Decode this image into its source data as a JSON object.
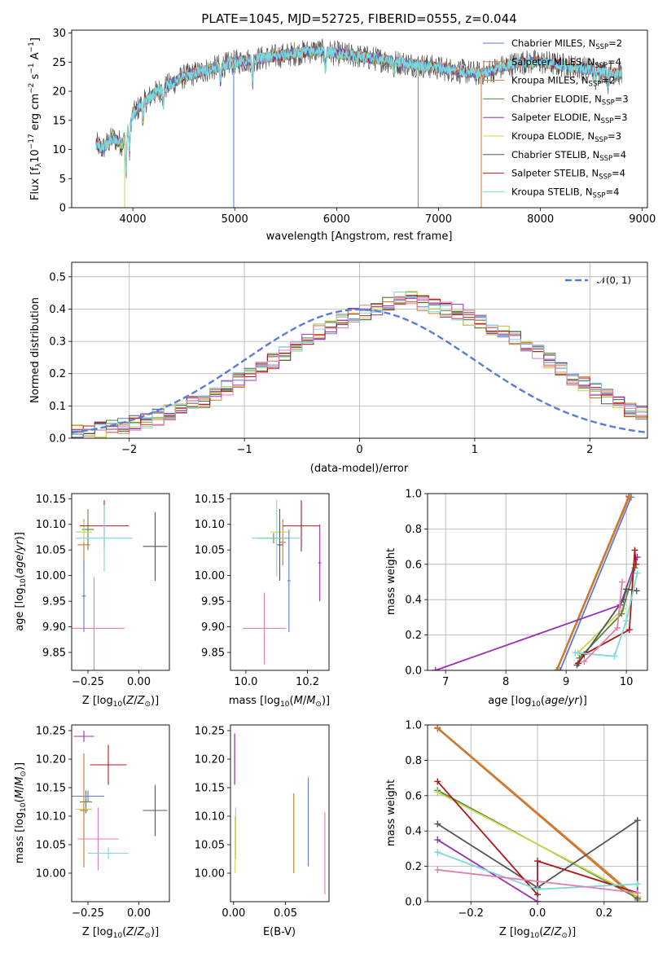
{
  "colors": {
    "ch_miles": "#5b7bd5",
    "sa_miles": "#e07b39",
    "kr_miles": "#c8782a",
    "ch_elodie": "#4f8a3c",
    "sa_elodie": "#9b30b8",
    "kr_elodie": "#c8d84a",
    "ch_stelib": "#555555",
    "sa_stelib": "#b01818",
    "kr_stelib": "#7dd8dc",
    "pink": "#e07fb0"
  },
  "chart_data": [
    {
      "id": "spectrum",
      "type": "line",
      "title": "PLATE=1045, MJD=52725, FIBERID=0555, z=0.044",
      "xlabel": "wavelength [Angstrom, rest frame]",
      "ylabel": "Flux [fλ10⁻¹⁷ erg cm⁻² s⁻¹ A⁻¹]",
      "xlim": [
        3400,
        9050
      ],
      "ylim": [
        0,
        30.5
      ],
      "xticks": [
        4000,
        5000,
        6000,
        7000,
        8000,
        9000
      ],
      "yticks": [
        0,
        5,
        10,
        15,
        20,
        25,
        30
      ],
      "continuum": {
        "x": [
          3640,
          3700,
          3800,
          3900,
          4000,
          4100,
          4200,
          4300,
          4400,
          4500,
          4600,
          4700,
          4800,
          4900,
          5000,
          5200,
          5400,
          5600,
          5800,
          6000,
          6200,
          6400,
          6600,
          6800,
          7000,
          7200,
          7400,
          7600,
          7800,
          8000,
          8200,
          8400,
          8600,
          8800
        ],
        "y": [
          11,
          10,
          12,
          11,
          16,
          18,
          19.5,
          20.5,
          21.5,
          22.5,
          23,
          23.5,
          24,
          24.5,
          25,
          25.5,
          26,
          26.5,
          27,
          26.5,
          26,
          25.5,
          25,
          24.5,
          24,
          23.5,
          23,
          24,
          25,
          25,
          24.5,
          24,
          23.5,
          23
        ]
      },
      "legend": [
        {
          "label": "Chabrier MILES, N",
          "sub": "SSP",
          "suffix": "=2",
          "color_key": "ch_miles"
        },
        {
          "label": "Salpeter MILES, N",
          "sub": "SSP",
          "suffix": "=4",
          "color_key": "sa_miles"
        },
        {
          "label": "Kroupa MILES, N",
          "sub": "SSP",
          "suffix": "=2",
          "color_key": "kr_miles"
        },
        {
          "label": "Chabrier ELODIE, N",
          "sub": "SSP",
          "suffix": "=3",
          "color_key": "ch_elodie"
        },
        {
          "label": "Salpeter ELODIE, N",
          "sub": "SSP",
          "suffix": "=3",
          "color_key": "sa_elodie"
        },
        {
          "label": "Kroupa ELODIE, N",
          "sub": "SSP",
          "suffix": "=3",
          "color_key": "kr_elodie"
        },
        {
          "label": "Chabrier STELIB, N",
          "sub": "SSP",
          "suffix": "=4",
          "color_key": "ch_stelib"
        },
        {
          "label": "Salpeter STELIB, N",
          "sub": "SSP",
          "suffix": "=4",
          "color_key": "sa_stelib"
        },
        {
          "label": "Kroupa STELIB, N",
          "sub": "SSP",
          "suffix": "=4",
          "color_key": "kr_stelib"
        }
      ]
    },
    {
      "id": "residuals",
      "type": "line",
      "xlabel": "(data-model)/error",
      "ylabel": "Normed distribution",
      "xlim": [
        -2.5,
        2.5
      ],
      "ylim": [
        0,
        0.545
      ],
      "xticks": [
        -2,
        -1,
        0,
        1,
        2
      ],
      "yticks": [
        0.0,
        0.1,
        0.2,
        0.3,
        0.4,
        0.5
      ],
      "legend": [
        {
          "label": "𝒩(0, 1)",
          "color_key": "ch_miles"
        }
      ],
      "bin_width": 0.1,
      "series_center_y": [
        0.02,
        0.022,
        0.028,
        0.032,
        0.038,
        0.045,
        0.055,
        0.065,
        0.08,
        0.09,
        0.105,
        0.12,
        0.14,
        0.155,
        0.18,
        0.2,
        0.215,
        0.24,
        0.26,
        0.29,
        0.31,
        0.33,
        0.345,
        0.36,
        0.38,
        0.39,
        0.4,
        0.42,
        0.43,
        0.43,
        0.42,
        0.41,
        0.4,
        0.39,
        0.375,
        0.365,
        0.345,
        0.33,
        0.31,
        0.28,
        0.265,
        0.24,
        0.21,
        0.19,
        0.17,
        0.15,
        0.13,
        0.105,
        0.09,
        0.075
      ]
    },
    {
      "id": "age_vs_Z",
      "type": "scatter",
      "xlabel": "Z [log₁₀(Z/Z⊙)]",
      "ylabel": "age  [log₁₀(age/yr)]",
      "xlim": [
        -0.33,
        0.15
      ],
      "ylim": [
        9.815,
        10.16
      ],
      "xticks": [
        -0.25,
        0.0
      ],
      "yticks": [
        9.85,
        9.9,
        9.95,
        10.0,
        10.05,
        10.1,
        10.15
      ],
      "points": [
        {
          "x": -0.27,
          "y": 10.06,
          "xerr": 0.03,
          "yerr": 0.05,
          "color_key": "kr_miles"
        },
        {
          "x": -0.25,
          "y": 10.09,
          "xerr": 0.03,
          "yerr": 0.04,
          "color_key": "ch_elodie"
        },
        {
          "x": -0.27,
          "y": 10.085,
          "xerr": 0.04,
          "yerr": 0.02,
          "color_key": "kr_elodie"
        },
        {
          "x": -0.17,
          "y": 10.097,
          "xerr": 0.12,
          "yerr": 0.05,
          "color_key": "sa_stelib"
        },
        {
          "x": 0.08,
          "y": 10.057,
          "xerr": 0.06,
          "yerr": 0.067,
          "color_key": "ch_stelib"
        },
        {
          "x": -0.17,
          "y": 10.073,
          "xerr": 0.14,
          "yerr": 0.065,
          "color_key": "kr_stelib"
        },
        {
          "x": -0.22,
          "y": 9.897,
          "xerr": 0.15,
          "yerr": 0.1,
          "color_key": "pink"
        },
        {
          "x": -0.27,
          "y": 9.96,
          "xerr": 0.01,
          "yerr": 0.07,
          "color_key": "ch_miles"
        }
      ]
    },
    {
      "id": "age_vs_mass",
      "type": "scatter",
      "xlabel": "mass [log₁₀(M/M⊙)]",
      "ylabel": "",
      "xlim": [
        9.95,
        10.27
      ],
      "ylim": [
        9.815,
        10.16
      ],
      "xticks": [
        10.0,
        10.2
      ],
      "yticks": [
        9.85,
        9.9,
        9.95,
        10.0,
        10.05,
        10.1,
        10.15
      ],
      "points": [
        {
          "x": 10.12,
          "y": 10.065,
          "xerr": 0.01,
          "yerr": 0.045,
          "color_key": "kr_miles"
        },
        {
          "x": 10.11,
          "y": 10.085,
          "xerr": 0.03,
          "yerr": 0.02,
          "color_key": "kr_elodie"
        },
        {
          "x": 10.09,
          "y": 10.073,
          "xerr": 0.05,
          "yerr": 0.01,
          "color_key": "ch_elodie"
        },
        {
          "x": 10.18,
          "y": 10.097,
          "xerr": 0.06,
          "yerr": 0.05,
          "color_key": "sa_stelib"
        },
        {
          "x": 10.11,
          "y": 10.06,
          "xerr": 0.01,
          "yerr": 0.07,
          "color_key": "ch_stelib"
        },
        {
          "x": 10.1,
          "y": 10.073,
          "xerr": 0.08,
          "yerr": 0.075,
          "color_key": "kr_stelib"
        },
        {
          "x": 10.06,
          "y": 9.897,
          "xerr": 0.07,
          "yerr": 0.07,
          "color_key": "pink"
        },
        {
          "x": 10.24,
          "y": 10.025,
          "xerr": 0.005,
          "yerr": 0.075,
          "color_key": "sa_elodie"
        },
        {
          "x": 10.14,
          "y": 9.99,
          "xerr": 0.005,
          "yerr": 0.1,
          "color_key": "ch_miles"
        }
      ]
    },
    {
      "id": "mass_weight_vs_age",
      "type": "line",
      "xlabel": "age  [log₁₀(age/yr)]",
      "ylabel": "mass weight",
      "xlim": [
        6.7,
        10.35
      ],
      "ylim": [
        0,
        1
      ],
      "xticks": [
        7,
        8,
        9,
        10
      ],
      "yticks": [
        0.0,
        0.2,
        0.4,
        0.6,
        0.8,
        1.0
      ],
      "series": [
        {
          "color_key": "ch_miles",
          "x": [
            8.9,
            10.08
          ],
          "y": [
            0.0,
            0.98
          ]
        },
        {
          "color_key": "sa_miles",
          "x": [
            8.85,
            10.05
          ],
          "y": [
            0.0,
            0.98
          ]
        },
        {
          "color_key": "kr_miles",
          "x": [
            8.84,
            10.04
          ],
          "y": [
            0.0,
            0.985
          ]
        },
        {
          "color_key": "sa_elodie",
          "x": [
            6.83,
            9.9,
            10.18
          ],
          "y": [
            0.0,
            0.37,
            0.64
          ]
        },
        {
          "color_key": "kr_elodie",
          "x": [
            9.2,
            9.95,
            10.15
          ],
          "y": [
            0.1,
            0.35,
            0.6
          ]
        },
        {
          "color_key": "ch_elodie",
          "x": [
            9.22,
            9.92,
            10.14
          ],
          "y": [
            0.07,
            0.32,
            0.58
          ]
        },
        {
          "color_key": "ch_stelib",
          "x": [
            9.18,
            9.95,
            10.0,
            10.17
          ],
          "y": [
            0.03,
            0.4,
            0.46,
            0.45
          ]
        },
        {
          "color_key": "sa_stelib",
          "x": [
            9.2,
            9.3,
            10.05,
            10.14,
            10.16
          ],
          "y": [
            0.04,
            0.09,
            0.23,
            0.68,
            0.6
          ]
        },
        {
          "color_key": "kr_stelib",
          "x": [
            9.15,
            9.8,
            10.0,
            10.18
          ],
          "y": [
            0.1,
            0.08,
            0.28,
            0.55
          ]
        },
        {
          "color_key": "pink",
          "x": [
            9.3,
            9.85,
            9.93
          ],
          "y": [
            0.05,
            0.24,
            0.5
          ]
        }
      ]
    },
    {
      "id": "mass_vs_Z",
      "type": "scatter",
      "xlabel": "Z [log₁₀(Z/Z⊙)]",
      "ylabel": "mass [log₁₀(M/M⊙)]",
      "xlim": [
        -0.33,
        0.15
      ],
      "ylim": [
        9.95,
        10.26
      ],
      "xticks": [
        -0.25,
        0.0
      ],
      "yticks": [
        10.0,
        10.05,
        10.1,
        10.15,
        10.2,
        10.25
      ],
      "points": [
        {
          "x": -0.27,
          "y": 10.24,
          "xerr": 0.05,
          "yerr": 0.01,
          "color_key": "sa_elodie"
        },
        {
          "x": -0.15,
          "y": 10.19,
          "xerr": 0.09,
          "yerr": 0.035,
          "color_key": "sa_stelib"
        },
        {
          "x": -0.26,
          "y": 10.125,
          "xerr": 0.03,
          "yerr": 0.02,
          "color_key": "ch_elodie"
        },
        {
          "x": -0.25,
          "y": 10.135,
          "xerr": 0.08,
          "yerr": 0.01,
          "color_key": "ch_miles"
        },
        {
          "x": -0.27,
          "y": 10.112,
          "xerr": 0.04,
          "yerr": 0.01,
          "color_key": "kr_elodie"
        },
        {
          "x": -0.27,
          "y": 10.11,
          "xerr": 0.02,
          "yerr": 0.1,
          "color_key": "kr_miles"
        },
        {
          "x": 0.08,
          "y": 10.11,
          "xerr": 0.06,
          "yerr": 0.045,
          "color_key": "ch_stelib"
        },
        {
          "x": -0.2,
          "y": 10.06,
          "xerr": 0.1,
          "yerr": 0.055,
          "color_key": "pink"
        },
        {
          "x": -0.15,
          "y": 10.035,
          "xerr": 0.1,
          "yerr": 0.01,
          "color_key": "kr_stelib"
        }
      ]
    },
    {
      "id": "mass_vs_ebv",
      "type": "scatter",
      "xlabel": "E(B-V)",
      "ylabel": "",
      "xlim": [
        -0.003,
        0.092
      ],
      "ylim": [
        9.95,
        10.26
      ],
      "xticks": [
        0.0,
        0.05
      ],
      "yticks": [
        10.0,
        10.05,
        10.1,
        10.15,
        10.2,
        10.25
      ],
      "points": [
        {
          "x": 0.001,
          "y": 10.2,
          "xerr": 0.0,
          "yerr": 0.045,
          "color_key": "sa_stelib"
        },
        {
          "x": 0.001,
          "y": 10.2,
          "xerr": 0.0,
          "yerr": 0.045,
          "color_key": "sa_elodie"
        },
        {
          "x": 0.002,
          "y": 10.07,
          "xerr": 0.0,
          "yerr": 0.045,
          "color_key": "kr_stelib"
        },
        {
          "x": 0.0015,
          "y": 10.05,
          "xerr": 0.0,
          "yerr": 0.05,
          "color_key": "kr_elodie"
        },
        {
          "x": 0.058,
          "y": 10.07,
          "xerr": 0.0,
          "yerr": 0.07,
          "color_key": "kr_miles"
        },
        {
          "x": 0.072,
          "y": 10.09,
          "xerr": 0.0,
          "yerr": 0.078,
          "color_key": "ch_miles"
        },
        {
          "x": 0.088,
          "y": 10.035,
          "xerr": 0.0,
          "yerr": 0.072,
          "color_key": "pink"
        }
      ]
    },
    {
      "id": "mass_weight_vs_Z",
      "type": "line",
      "xlabel": "Z [log₁₀(Z/Z⊙)]",
      "ylabel": "mass weight",
      "xlim": [
        -0.33,
        0.33
      ],
      "ylim": [
        0,
        1
      ],
      "xticks": [
        -0.2,
        0.0,
        0.2
      ],
      "yticks": [
        0.0,
        0.2,
        0.4,
        0.6,
        0.8,
        1.0
      ],
      "series": [
        {
          "color_key": "ch_miles",
          "x": [
            -0.3,
            0.3
          ],
          "y": [
            0.98,
            0.02
          ]
        },
        {
          "color_key": "sa_miles",
          "x": [
            -0.3,
            0.3
          ],
          "y": [
            0.985,
            0.02
          ]
        },
        {
          "color_key": "kr_miles",
          "x": [
            -0.3,
            0.3
          ],
          "y": [
            0.98,
            0.01
          ]
        },
        {
          "color_key": "ch_elodie",
          "x": [
            -0.3,
            0.3
          ],
          "y": [
            0.63,
            0.02
          ]
        },
        {
          "color_key": "kr_elodie",
          "x": [
            -0.3,
            0.3
          ],
          "y": [
            0.62,
            0.03
          ]
        },
        {
          "color_key": "sa_elodie",
          "x": [
            -0.3,
            0.0
          ],
          "y": [
            0.35,
            0.0
          ]
        },
        {
          "color_key": "ch_stelib",
          "x": [
            -0.3,
            0.0,
            0.3,
            0.3
          ],
          "y": [
            0.44,
            0.08,
            0.46,
            0.02
          ]
        },
        {
          "color_key": "sa_stelib",
          "x": [
            -0.3,
            0.0,
            0.0,
            0.3
          ],
          "y": [
            0.68,
            0.04,
            0.23,
            0.05
          ]
        },
        {
          "color_key": "kr_stelib",
          "x": [
            -0.3,
            0.0,
            0.3
          ],
          "y": [
            0.28,
            0.07,
            0.1
          ]
        },
        {
          "color_key": "pink",
          "x": [
            -0.3,
            0.3
          ],
          "y": [
            0.18,
            0.05
          ]
        }
      ]
    }
  ]
}
